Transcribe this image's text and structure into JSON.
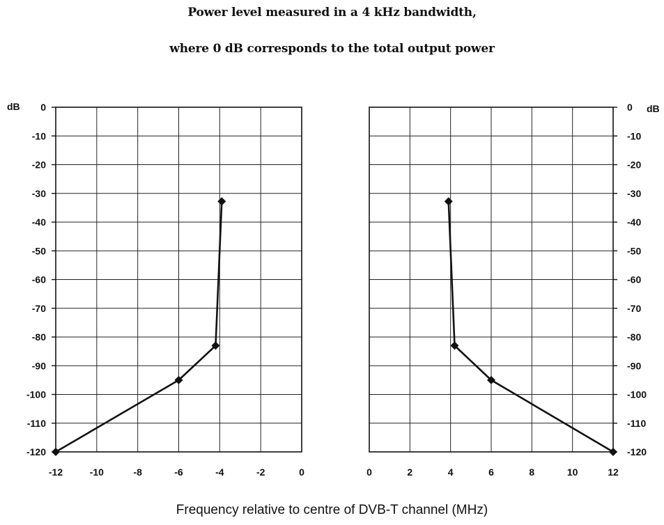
{
  "title_lines": [
    "Power level measured in a 4 kHz bandwidth,",
    "where 0 dB corresponds to the total output power"
  ],
  "chart_data": [
    {
      "type": "line",
      "xlabel": "Frequency relative to centre of DVB-T channel (MHz)",
      "ylabel": "dB",
      "xlim": [
        -12,
        0
      ],
      "ylim": [
        -120,
        0
      ],
      "xticks": [
        -12,
        -10,
        -8,
        -6,
        -4,
        -2,
        0
      ],
      "yticks": [
        0,
        -10,
        -20,
        -30,
        -40,
        -50,
        -60,
        -70,
        -80,
        -90,
        -100,
        -110,
        -120
      ],
      "grid": true,
      "series": [
        {
          "x": [
            -12,
            -6,
            -4.2,
            -3.9
          ],
          "y": [
            -120,
            -95,
            -83,
            -32.8
          ]
        }
      ]
    },
    {
      "type": "line",
      "xlabel": "Frequency relative to centre of DVB-T channel (MHz)",
      "ylabel": "dB",
      "xlim": [
        0,
        12
      ],
      "ylim": [
        -120,
        0
      ],
      "xticks": [
        0,
        2,
        4,
        6,
        8,
        10,
        12
      ],
      "yticks": [
        0,
        -10,
        -20,
        -30,
        -40,
        -50,
        -60,
        -70,
        -80,
        -90,
        -100,
        -110,
        -120
      ],
      "grid": true,
      "series": [
        {
          "x": [
            3.9,
            4.2,
            6,
            12
          ],
          "y": [
            -32.8,
            -83,
            -95,
            -120
          ]
        }
      ]
    }
  ]
}
